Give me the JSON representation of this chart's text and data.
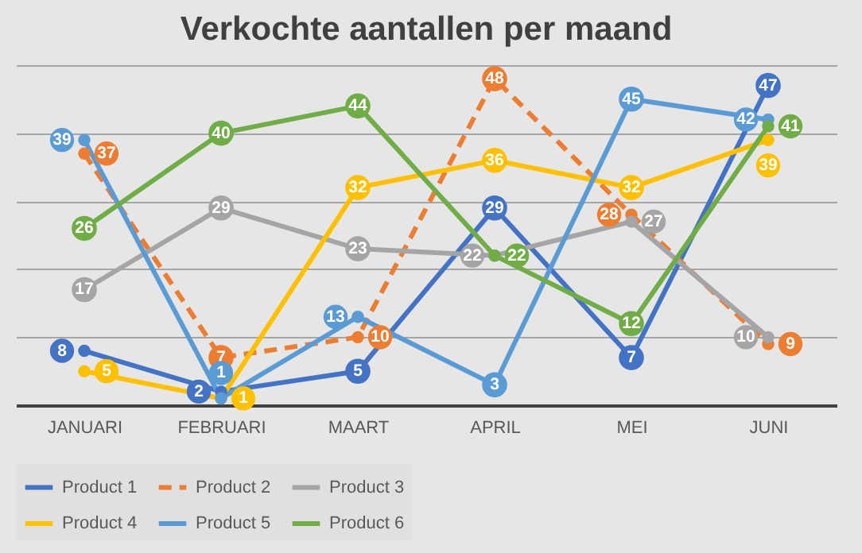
{
  "chart_data": {
    "type": "line",
    "title": "Verkochte aantallen per maand",
    "categories": [
      "JANUARI",
      "FEBRUARI",
      "MAART",
      "APRIL",
      "MEI",
      "JUNI"
    ],
    "series": [
      {
        "name": "Product 1",
        "color": "#4472c4",
        "values": [
          8,
          2,
          5,
          29,
          7,
          47
        ]
      },
      {
        "name": "Product 2",
        "color": "#ed7d31",
        "values": [
          37,
          7,
          10,
          48,
          28,
          9
        ],
        "line_style": "dashed"
      },
      {
        "name": "Product 3",
        "color": "#a5a5a5",
        "values": [
          17,
          29,
          23,
          22,
          27,
          10
        ]
      },
      {
        "name": "Product 4",
        "color": "#ffc000",
        "values": [
          5,
          1,
          32,
          36,
          32,
          39
        ]
      },
      {
        "name": "Product 5",
        "color": "#5b9bd5",
        "values": [
          39,
          1,
          13,
          3,
          45,
          42
        ]
      },
      {
        "name": "Product 6",
        "color": "#70ad47",
        "values": [
          26,
          40,
          44,
          22,
          12,
          41
        ]
      }
    ],
    "tick_labels": "x",
    "grid": "y",
    "legend": "bottom",
    "marker": "circle",
    "line_style": "solid",
    "data_labels": true
  }
}
